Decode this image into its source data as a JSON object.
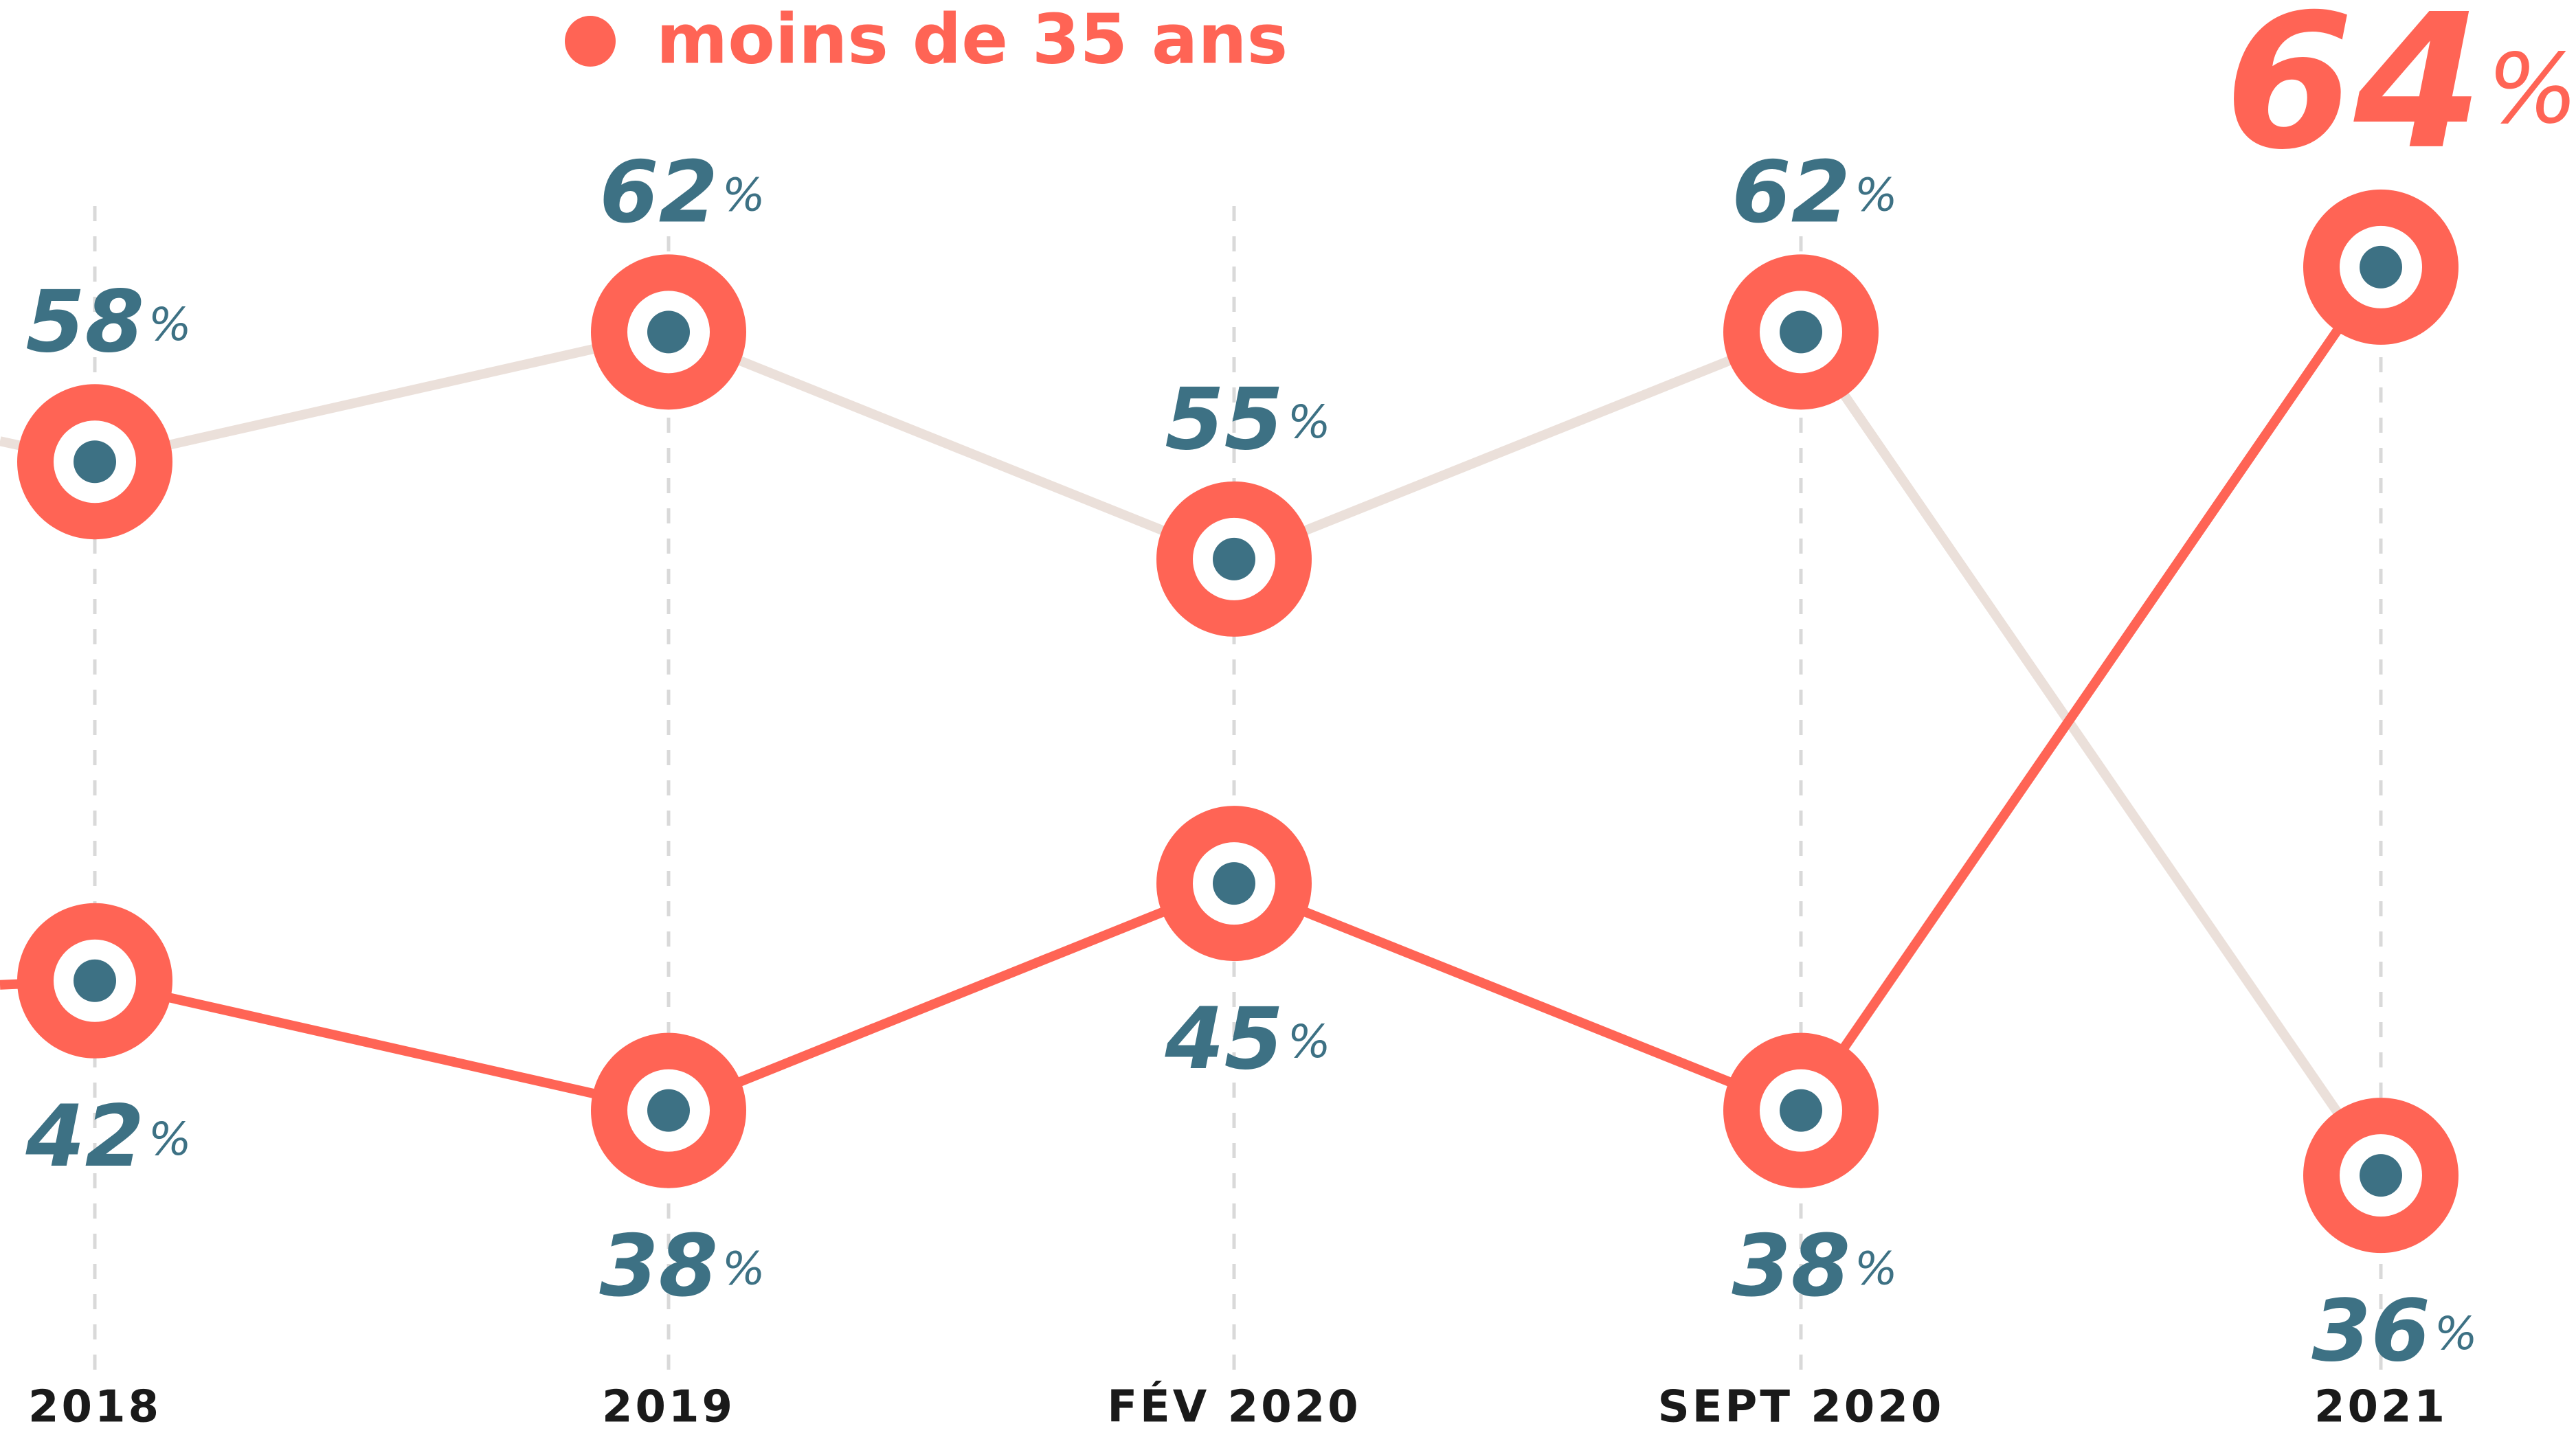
{
  "chart_data": {
    "type": "line",
    "categories": [
      "2018",
      "2019",
      "FÉV 2020",
      "SEPT 2020",
      "2021"
    ],
    "series": [
      {
        "color": "#ebe0da",
        "values": [
          58,
          62,
          55,
          62,
          36
        ],
        "value_labels": [
          "58%",
          "62%",
          "55%",
          "62%",
          "36%"
        ]
      },
      {
        "name": "moins de 35 ans",
        "color": "#ff6455",
        "values": [
          42,
          38,
          45,
          38,
          64
        ],
        "value_labels": [
          "42%",
          "38%",
          "45%",
          "38%",
          "64%"
        ]
      }
    ],
    "ylim": [
      32,
      68
    ]
  }
}
